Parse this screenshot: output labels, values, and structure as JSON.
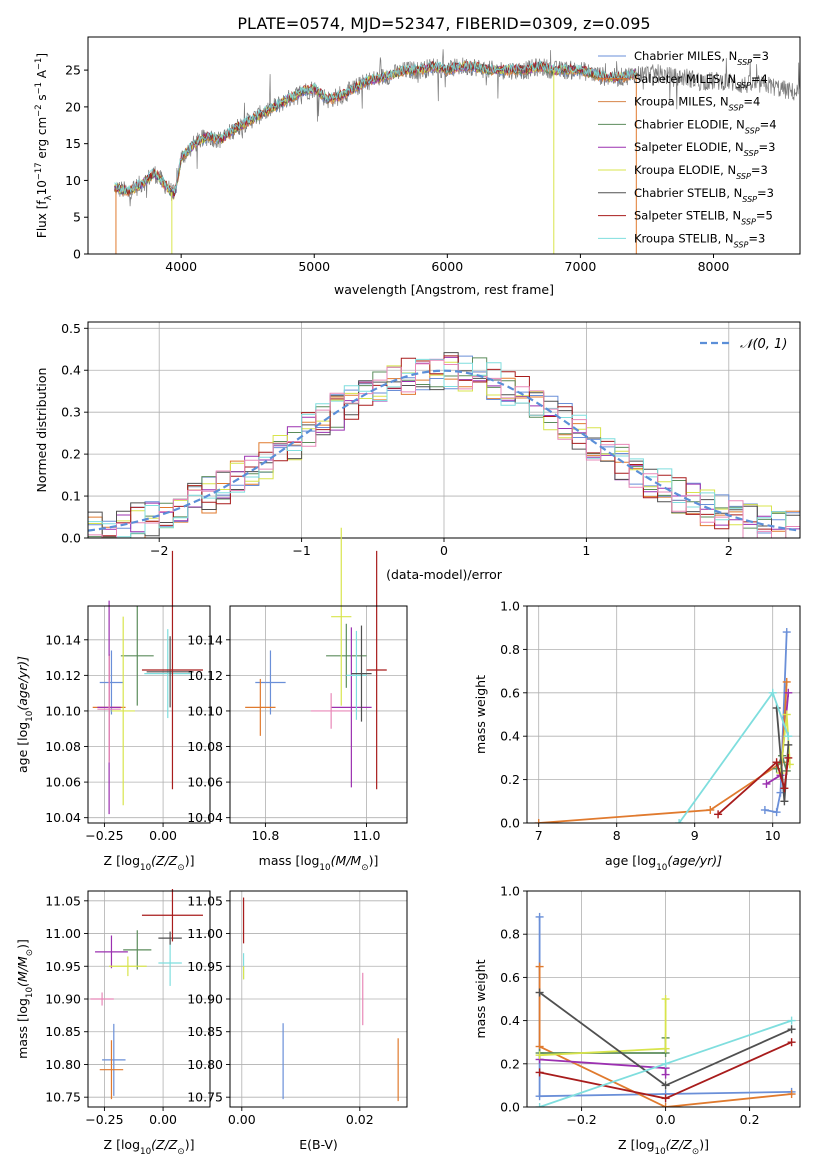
{
  "figure_title": "PLATE=0574, MJD=52347, FIBERID=0309, z=0.095",
  "colors": {
    "chabrier_miles": "#6a8fd8",
    "salpeter_miles": "#e07a2e",
    "kroupa_miles": "#d7844a",
    "chabrier_elodie": "#5b8c5b",
    "salpeter_elodie": "#9b30b0",
    "kroupa_elodie": "#d8e44c",
    "chabrier_stelib": "#505050",
    "salpeter_stelib": "#a81c1c",
    "kroupa_stelib": "#7fdede",
    "pink": "#e888b8",
    "normal": "#5b8fd8"
  },
  "chart_data": [
    {
      "type": "line",
      "id": "spectrum",
      "xlabel": "wavelength [Angstrom, rest frame]",
      "ylabel": "Flux [f",
      "ylabel_sub": "λ",
      "ylabel_tail": "10",
      "ylabel_exp1": "−17",
      "ylabel_mid": " erg cm",
      "ylabel_exp2": "−2",
      "ylabel_mid2": " s",
      "ylabel_exp3": "−1",
      "ylabel_end": " A",
      "ylabel_exp4": "−1",
      "ylabel_close": "]",
      "xlim": [
        3300,
        8650
      ],
      "ylim": [
        0,
        29.5
      ],
      "xticks": [
        "4000",
        "5000",
        "6000",
        "7000",
        "8000"
      ],
      "yticks": [
        "0",
        "5",
        "10",
        "15",
        "20",
        "25"
      ],
      "legend": [
        {
          "name": "Chabrier MILES, N",
          "sub": "SSP",
          "tail": "=3",
          "color": "#6a8fd8"
        },
        {
          "name": "Salpeter MILES, N",
          "sub": "SSP",
          "tail": "=4",
          "color": "#e07a2e"
        },
        {
          "name": "Kroupa MILES, N",
          "sub": "SSP",
          "tail": "=4",
          "color": "#d7844a"
        },
        {
          "name": "Chabrier ELODIE, N",
          "sub": "SSP",
          "tail": "=4",
          "color": "#5b8c5b"
        },
        {
          "name": "Salpeter ELODIE, N",
          "sub": "SSP",
          "tail": "=3",
          "color": "#9b30b0"
        },
        {
          "name": "Kroupa ELODIE, N",
          "sub": "SSP",
          "tail": "=3",
          "color": "#d8e44c"
        },
        {
          "name": "Chabrier STELIB, N",
          "sub": "SSP",
          "tail": "=3",
          "color": "#505050"
        },
        {
          "name": "Salpeter STELIB, N",
          "sub": "SSP",
          "tail": "=5",
          "color": "#a81c1c"
        },
        {
          "name": "Kroupa STELIB, N",
          "sub": "SSP",
          "tail": "=3",
          "color": "#7fdede"
        }
      ],
      "continuum": [
        [
          3500,
          9
        ],
        [
          3600,
          8.5
        ],
        [
          3700,
          9.5
        ],
        [
          3800,
          11
        ],
        [
          3900,
          9
        ],
        [
          3950,
          8
        ],
        [
          4000,
          13
        ],
        [
          4100,
          15
        ],
        [
          4200,
          16
        ],
        [
          4300,
          15.5
        ],
        [
          4400,
          17
        ],
        [
          4500,
          18
        ],
        [
          4600,
          19
        ],
        [
          4700,
          20
        ],
        [
          4800,
          21
        ],
        [
          4900,
          22
        ],
        [
          5000,
          22.5
        ],
        [
          5100,
          21
        ],
        [
          5200,
          21.5
        ],
        [
          5300,
          22.5
        ],
        [
          5400,
          23.5
        ],
        [
          5500,
          24
        ],
        [
          5600,
          24.5
        ],
        [
          5700,
          25
        ],
        [
          5800,
          25
        ],
        [
          5900,
          25.5
        ],
        [
          6000,
          25
        ],
        [
          6100,
          25.5
        ],
        [
          6200,
          25.5
        ],
        [
          6300,
          25
        ],
        [
          6400,
          25
        ],
        [
          6500,
          25
        ],
        [
          6600,
          25
        ],
        [
          6700,
          25.5
        ],
        [
          6800,
          25
        ],
        [
          6900,
          25
        ],
        [
          7000,
          25
        ],
        [
          7100,
          24.5
        ],
        [
          7200,
          24
        ],
        [
          7300,
          24
        ],
        [
          7400,
          24.5
        ],
        [
          7500,
          24.5
        ],
        [
          7600,
          24.5
        ],
        [
          7700,
          24
        ],
        [
          7800,
          24
        ],
        [
          7900,
          23.5
        ],
        [
          8000,
          23.5
        ],
        [
          8100,
          23.5
        ],
        [
          8200,
          23
        ],
        [
          8300,
          23
        ],
        [
          8400,
          23
        ],
        [
          8500,
          22.5
        ],
        [
          8600,
          22
        ]
      ],
      "data_xmax": 8650,
      "model_xmax": 7420
    },
    {
      "type": "line",
      "id": "residuals",
      "xlabel": "(data-model)/error",
      "ylabel": "Normed distribution",
      "xlim": [
        -2.5,
        2.5
      ],
      "ylim": [
        0,
        0.515
      ],
      "xticks": [
        "−2",
        "−1",
        "0",
        "1",
        "2"
      ],
      "xtick_values": [
        -2,
        -1,
        0,
        1,
        2
      ],
      "yticks": [
        "0.0",
        "0.1",
        "0.2",
        "0.3",
        "0.4",
        "0.5"
      ],
      "ytick_values": [
        0,
        0.1,
        0.2,
        0.3,
        0.4,
        0.5
      ],
      "legend_label": "𝒩(0, 1)",
      "bin_width": 0.1
    },
    {
      "type": "scatter",
      "id": "age-vs-z",
      "xlabel": "Z [log",
      "xlabel_sub": "10",
      "xlabel_tail": "(Z/Z",
      "xlabel_sub2": "⊙",
      "xlabel_end": ")]",
      "ylabel": "age  [log",
      "ylabel_sub": "10",
      "ylabel_tail": "(age/yr)]",
      "xlim": [
        -0.32,
        0.2
      ],
      "ylim": [
        10.037,
        10.159
      ],
      "xticks": [
        "−0.25",
        "0.00"
      ],
      "xtick_values": [
        -0.25,
        0
      ],
      "yticks": [
        "10.04",
        "10.06",
        "10.08",
        "10.10",
        "10.12",
        "10.14"
      ],
      "ytick_values": [
        10.04,
        10.06,
        10.08,
        10.1,
        10.12,
        10.14
      ],
      "points": [
        {
          "x": -0.22,
          "y": 10.116,
          "xerr": 0.05,
          "yerr": 0.018,
          "color": "#6a8fd8"
        },
        {
          "x": -0.23,
          "y": 10.102,
          "xerr": 0.07,
          "yerr": 0.03,
          "color": "#e07a2e"
        },
        {
          "x": -0.11,
          "y": 10.131,
          "xerr": 0.07,
          "yerr": 0.028,
          "color": "#5b8c5b"
        },
        {
          "x": -0.23,
          "y": 10.102,
          "xerr": 0.05,
          "yerr": 0.06,
          "color": "#9b30b0"
        },
        {
          "x": -0.17,
          "y": 10.1,
          "xerr": 0.05,
          "yerr": 0.053,
          "color": "#d8e44c"
        },
        {
          "x": -0.23,
          "y": 10.101,
          "xerr": 0.05,
          "yerr": 0.03,
          "color": "#e888b8"
        },
        {
          "x": 0.02,
          "y": 10.121,
          "xerr": 0.1,
          "yerr": 0.025,
          "color": "#7fdede"
        },
        {
          "x": 0.03,
          "y": 10.122,
          "xerr": 0.1,
          "yerr": 0.02,
          "color": "#505050"
        },
        {
          "x": 0.04,
          "y": 10.123,
          "xerr": 0.13,
          "yerr": 0.067,
          "color": "#a81c1c"
        }
      ]
    },
    {
      "type": "scatter",
      "id": "age-vs-mass",
      "xlabel": "mass [log",
      "xlabel_sub": "10",
      "xlabel_tail": "(M/M",
      "xlabel_sub2": "⊙",
      "xlabel_end": ")]",
      "xlim": [
        10.73,
        11.08
      ],
      "ylim": [
        10.037,
        10.159
      ],
      "xticks": [
        "10.8",
        "11.0"
      ],
      "xtick_values": [
        10.8,
        11.0
      ],
      "yticks": [
        "10.04",
        "10.06",
        "10.08",
        "10.10",
        "10.12",
        "10.14"
      ],
      "ytick_values": [
        10.04,
        10.06,
        10.08,
        10.1,
        10.12,
        10.14
      ],
      "points": [
        {
          "x": 10.81,
          "y": 10.116,
          "xerr": 0.03,
          "yerr": 0.018,
          "color": "#6a8fd8"
        },
        {
          "x": 10.79,
          "y": 10.102,
          "xerr": 0.03,
          "yerr": 0.016,
          "color": "#e07a2e"
        },
        {
          "x": 10.96,
          "y": 10.131,
          "xerr": 0.04,
          "yerr": 0.018,
          "color": "#5b8c5b"
        },
        {
          "x": 10.97,
          "y": 10.102,
          "xerr": 0.04,
          "yerr": 0.045,
          "color": "#9b30b0"
        },
        {
          "x": 10.95,
          "y": 10.153,
          "xerr": 0.02,
          "yerr": 0.05,
          "color": "#d8e44c"
        },
        {
          "x": 10.93,
          "y": 10.1,
          "xerr": 0.04,
          "yerr": 0.01,
          "color": "#e888b8"
        },
        {
          "x": 10.98,
          "y": 10.12,
          "xerr": 0.02,
          "yerr": 0.025,
          "color": "#7fdede"
        },
        {
          "x": 10.99,
          "y": 10.121,
          "xerr": 0.02,
          "yerr": 0.027,
          "color": "#505050"
        },
        {
          "x": 11.02,
          "y": 10.123,
          "xerr": 0.02,
          "yerr": 0.067,
          "color": "#a81c1c"
        }
      ]
    },
    {
      "type": "line",
      "id": "weight-vs-age",
      "xlabel": "age  [log",
      "xlabel_sub": "10",
      "xlabel_tail": "(age/yr)]",
      "ylabel": "mass weight",
      "xlim": [
        6.85,
        10.35
      ],
      "ylim": [
        0,
        1
      ],
      "xticks": [
        "7",
        "8",
        "9",
        "10"
      ],
      "xtick_values": [
        7,
        8,
        9,
        10
      ],
      "yticks": [
        "0.0",
        "0.2",
        "0.4",
        "0.6",
        "0.8",
        "1.0"
      ],
      "ytick_values": [
        0,
        0.2,
        0.4,
        0.6,
        0.8,
        1.0
      ],
      "series": [
        {
          "color": "#6a8fd8",
          "x": [
            9.9,
            10.05,
            10.1,
            10.18
          ],
          "y": [
            0.06,
            0.05,
            0.14,
            0.88
          ]
        },
        {
          "color": "#e07a2e",
          "x": [
            7.0,
            9.2,
            10.12,
            10.18
          ],
          "y": [
            0.0,
            0.06,
            0.28,
            0.65
          ]
        },
        {
          "color": "#5b8c5b",
          "x": [
            10.05,
            10.12,
            10.18
          ],
          "y": [
            0.25,
            0.31,
            0.24
          ]
        },
        {
          "color": "#9b30b0",
          "x": [
            9.92,
            10.1,
            10.2
          ],
          "y": [
            0.18,
            0.22,
            0.6
          ]
        },
        {
          "color": "#d8e44c",
          "x": [
            10.1,
            10.18,
            10.22
          ],
          "y": [
            0.23,
            0.5,
            0.27
          ]
        },
        {
          "color": "#505050",
          "x": [
            10.05,
            10.15,
            10.2
          ],
          "y": [
            0.53,
            0.1,
            0.36
          ]
        },
        {
          "color": "#a81c1c",
          "x": [
            9.3,
            10.05,
            10.15,
            10.2
          ],
          "y": [
            0.04,
            0.28,
            0.16,
            0.3
          ]
        },
        {
          "color": "#7fdede",
          "x": [
            8.8,
            10.0,
            10.2
          ],
          "y": [
            0.0,
            0.6,
            0.4
          ]
        }
      ]
    },
    {
      "type": "scatter",
      "id": "mass-vs-z",
      "xlabel": "Z [log",
      "xlabel_sub": "10",
      "xlabel_tail": "(Z/Z",
      "xlabel_sub2": "⊙",
      "xlabel_end": ")]",
      "ylabel": "mass [log",
      "ylabel_sub": "10",
      "ylabel_tail": "(M/M",
      "ylabel_sub2": "⊙",
      "ylabel_end": ")]",
      "xlim": [
        -0.32,
        0.2
      ],
      "ylim": [
        10.735,
        11.065
      ],
      "xticks": [
        "−0.25",
        "0.00"
      ],
      "xtick_values": [
        -0.25,
        0
      ],
      "yticks": [
        "10.75",
        "10.80",
        "10.85",
        "10.90",
        "10.95",
        "11.00",
        "11.05"
      ],
      "ytick_values": [
        10.75,
        10.8,
        10.85,
        10.9,
        10.95,
        11.0,
        11.05
      ],
      "points": [
        {
          "x": -0.21,
          "y": 10.807,
          "xerr": 0.05,
          "yerr": 0.055,
          "color": "#6a8fd8"
        },
        {
          "x": -0.22,
          "y": 10.792,
          "xerr": 0.05,
          "yerr": 0.045,
          "color": "#e07a2e"
        },
        {
          "x": -0.11,
          "y": 10.975,
          "xerr": 0.06,
          "yerr": 0.03,
          "color": "#5b8c5b"
        },
        {
          "x": -0.22,
          "y": 10.972,
          "xerr": 0.07,
          "yerr": 0.025,
          "color": "#9b30b0"
        },
        {
          "x": -0.15,
          "y": 10.95,
          "xerr": 0.08,
          "yerr": 0.015,
          "color": "#d8e44c"
        },
        {
          "x": -0.26,
          "y": 10.9,
          "xerr": 0.05,
          "yerr": 0.01,
          "color": "#e888b8"
        },
        {
          "x": 0.03,
          "y": 10.955,
          "xerr": 0.05,
          "yerr": 0.035,
          "color": "#7fdede"
        },
        {
          "x": 0.03,
          "y": 10.993,
          "xerr": 0.05,
          "yerr": 0.01,
          "color": "#505050"
        },
        {
          "x": 0.04,
          "y": 11.028,
          "xerr": 0.13,
          "yerr": 0.04,
          "color": "#a81c1c"
        }
      ]
    },
    {
      "type": "scatter",
      "id": "mass-vs-ebv",
      "xlabel": "E(B-V)",
      "xlim": [
        -0.002,
        0.028
      ],
      "ylim": [
        10.735,
        11.065
      ],
      "xticks": [
        "0.00",
        "0.02"
      ],
      "xtick_values": [
        0,
        0.02
      ],
      "yticks": [
        "10.75",
        "10.80",
        "10.85",
        "10.90",
        "10.95",
        "11.00",
        "11.05"
      ],
      "ytick_values": [
        10.75,
        10.8,
        10.85,
        10.9,
        10.95,
        11.0,
        11.05
      ],
      "points": [
        {
          "x": 0.007,
          "y": 10.805,
          "yerr": 0.058,
          "color": "#6a8fd8"
        },
        {
          "x": 0.0265,
          "y": 10.792,
          "yerr": 0.048,
          "color": "#e07a2e"
        },
        {
          "x": 0.0205,
          "y": 10.9,
          "yerr": 0.04,
          "color": "#e888b8"
        },
        {
          "x": 0.0003,
          "y": 11.02,
          "yerr": 0.035,
          "color": "#a81c1c"
        },
        {
          "x": 0.0003,
          "y": 10.95,
          "yerr": 0.02,
          "color": "#7fdede"
        },
        {
          "x": 0.0003,
          "y": 10.94,
          "yerr": 0.01,
          "color": "#d8e44c"
        }
      ]
    },
    {
      "type": "line",
      "id": "weight-vs-z",
      "xlabel": "Z [log",
      "xlabel_sub": "10",
      "xlabel_tail": "(Z/Z",
      "xlabel_sub2": "⊙",
      "xlabel_end": ")]",
      "ylabel": "mass weight",
      "xlim": [
        -0.33,
        0.32
      ],
      "ylim": [
        0,
        1
      ],
      "xticks": [
        "−0.2",
        "0.0",
        "0.2"
      ],
      "xtick_values": [
        -0.2,
        0,
        0.2
      ],
      "yticks": [
        "0.0",
        "0.2",
        "0.4",
        "0.6",
        "0.8",
        "1.0"
      ],
      "ytick_values": [
        0,
        0.2,
        0.4,
        0.6,
        0.8,
        1.0
      ],
      "series": [
        {
          "color": "#6a8fd8",
          "x": [
            -0.3,
            -0.3,
            0.0,
            0.3
          ],
          "y": [
            0.88,
            0.05,
            0.06,
            0.07
          ]
        },
        {
          "color": "#e07a2e",
          "x": [
            -0.3,
            -0.3,
            0.0,
            0.3
          ],
          "y": [
            0.65,
            0.28,
            0.0,
            0.06
          ]
        },
        {
          "color": "#5b8c5b",
          "x": [
            -0.3,
            0.0,
            0.0
          ],
          "y": [
            0.25,
            0.25,
            0.32
          ]
        },
        {
          "color": "#9b30b0",
          "x": [
            -0.3,
            0.0,
            0.0
          ],
          "y": [
            0.22,
            0.18,
            0.15
          ]
        },
        {
          "color": "#d8e44c",
          "x": [
            -0.3,
            0.0,
            0.0
          ],
          "y": [
            0.24,
            0.27,
            0.5
          ]
        },
        {
          "color": "#505050",
          "x": [
            -0.3,
            0.0,
            0.3
          ],
          "y": [
            0.53,
            0.1,
            0.36
          ]
        },
        {
          "color": "#a81c1c",
          "x": [
            -0.3,
            0.0,
            0.3
          ],
          "y": [
            0.16,
            0.04,
            0.3
          ]
        },
        {
          "color": "#7fdede",
          "x": [
            -0.3,
            0.0,
            0.3
          ],
          "y": [
            0.0,
            0.2,
            0.4
          ]
        }
      ]
    }
  ]
}
